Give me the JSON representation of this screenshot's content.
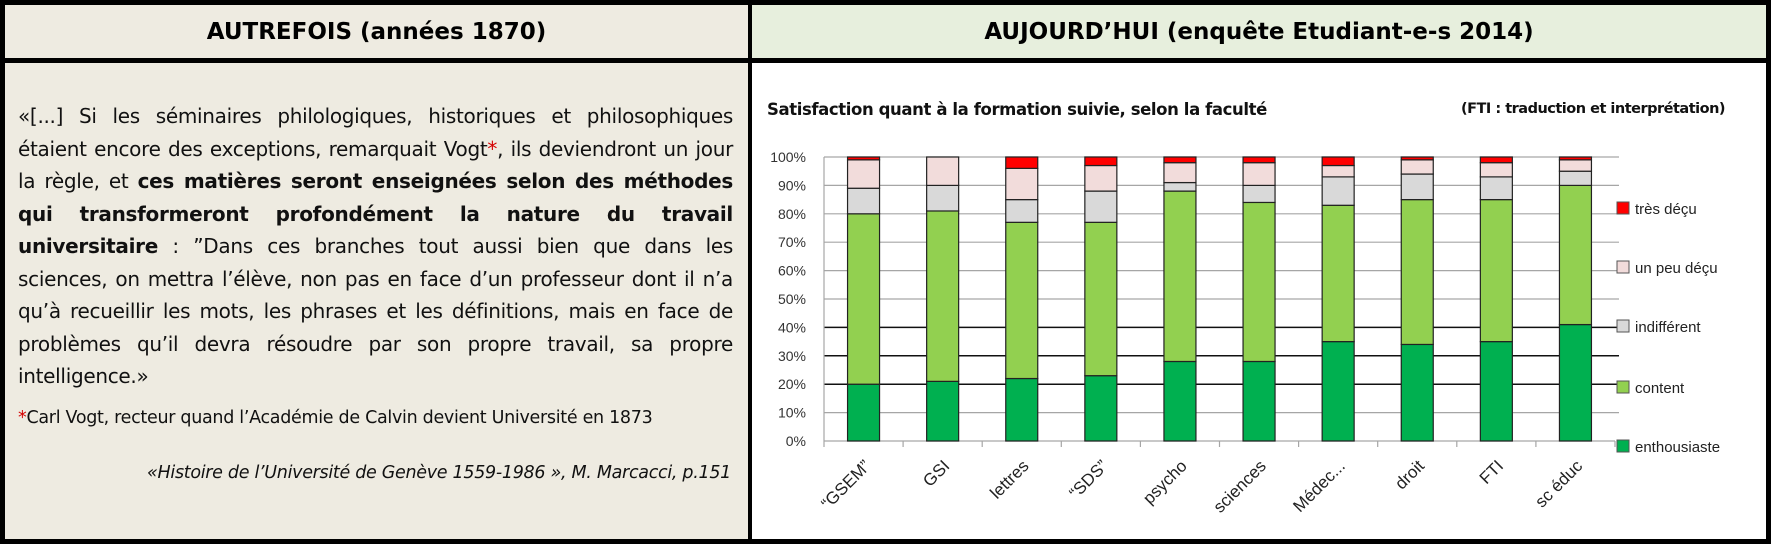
{
  "header": {
    "left_title": "AUTREFOIS (années 1870)",
    "right_title": "AUJOURD’HUI (enquête Etudiant-e-s 2014)"
  },
  "quote": {
    "part1": "«[...] Si les séminaires philologiques, historiques et philosophiques étaient encore des exceptions, remarquait Vogt",
    "star": "*",
    "part2": ", ils deviendront un jour la règle, et ",
    "bold": "ces matières seront enseignées selon des méthodes qui transformeront profondément la nature du travail universitaire",
    "part3": " : ”Dans ces branches tout aussi bien que dans les sciences, on mettra l’élève, non pas en face d’un professeur dont il n’a qu’à recueillir les mots, les phrases et les définitions, mais en face de problèmes qu’il devra résoudre par son propre travail, sa propre intelligence.»"
  },
  "footnote": {
    "star": "*",
    "text": "Carl Vogt, recteur quand l’Académie de Calvin devient Université en 1873"
  },
  "source": "«Histoire de l’Université de Genève 1559-1986 », M. Marcacci, p.151",
  "chart": {
    "title": "Satisfaction quant à la formation suivie, selon la faculté",
    "note": "(FTI : traduction et interprétation)"
  },
  "colors": {
    "tres_decu": "#ff0000",
    "un_peu_decu": "#f2dcdb",
    "indifferent": "#d9d9d9",
    "content": "#92d050",
    "enthousiaste": "#00b050",
    "left_bg": "#eeebe1",
    "right_header_bg": "#e7efdd"
  },
  "chart_data": {
    "type": "bar",
    "stacked": true,
    "title": "Satisfaction quant à la formation suivie, selon la faculté",
    "subtitle": "(FTI : traduction et interprétation)",
    "xlabel": "",
    "ylabel": "",
    "ylim": [
      0,
      100
    ],
    "yticks": [
      "0%",
      "10%",
      "20%",
      "30%",
      "40%",
      "50%",
      "60%",
      "70%",
      "80%",
      "90%",
      "100%"
    ],
    "grid": true,
    "legend_position": "right",
    "categories": [
      "“GSEM”",
      "GSI",
      "lettres",
      "“SDS”",
      "psycho",
      "sciences",
      "Médec...",
      "droit",
      "FTI",
      "sc éduc"
    ],
    "series": [
      {
        "name": "enthousiaste",
        "color": "#00b050",
        "values": [
          20,
          21,
          22,
          23,
          28,
          28,
          35,
          34,
          35,
          41
        ]
      },
      {
        "name": "content",
        "color": "#92d050",
        "values": [
          60,
          60,
          55,
          54,
          60,
          56,
          48,
          51,
          50,
          49
        ]
      },
      {
        "name": "indifférent",
        "color": "#d9d9d9",
        "values": [
          9,
          9,
          8,
          11,
          3,
          6,
          10,
          9,
          8,
          5
        ]
      },
      {
        "name": "un peu déçu",
        "color": "#f2dcdb",
        "values": [
          10,
          10,
          11,
          9,
          7,
          8,
          4,
          5,
          5,
          4
        ]
      },
      {
        "name": "très déçu",
        "color": "#ff0000",
        "values": [
          1,
          0,
          4,
          3,
          2,
          2,
          3,
          1,
          2,
          1
        ]
      }
    ],
    "legend": [
      "très déçu",
      "un peu déçu",
      "indifférent",
      "content",
      "enthousiaste"
    ]
  }
}
